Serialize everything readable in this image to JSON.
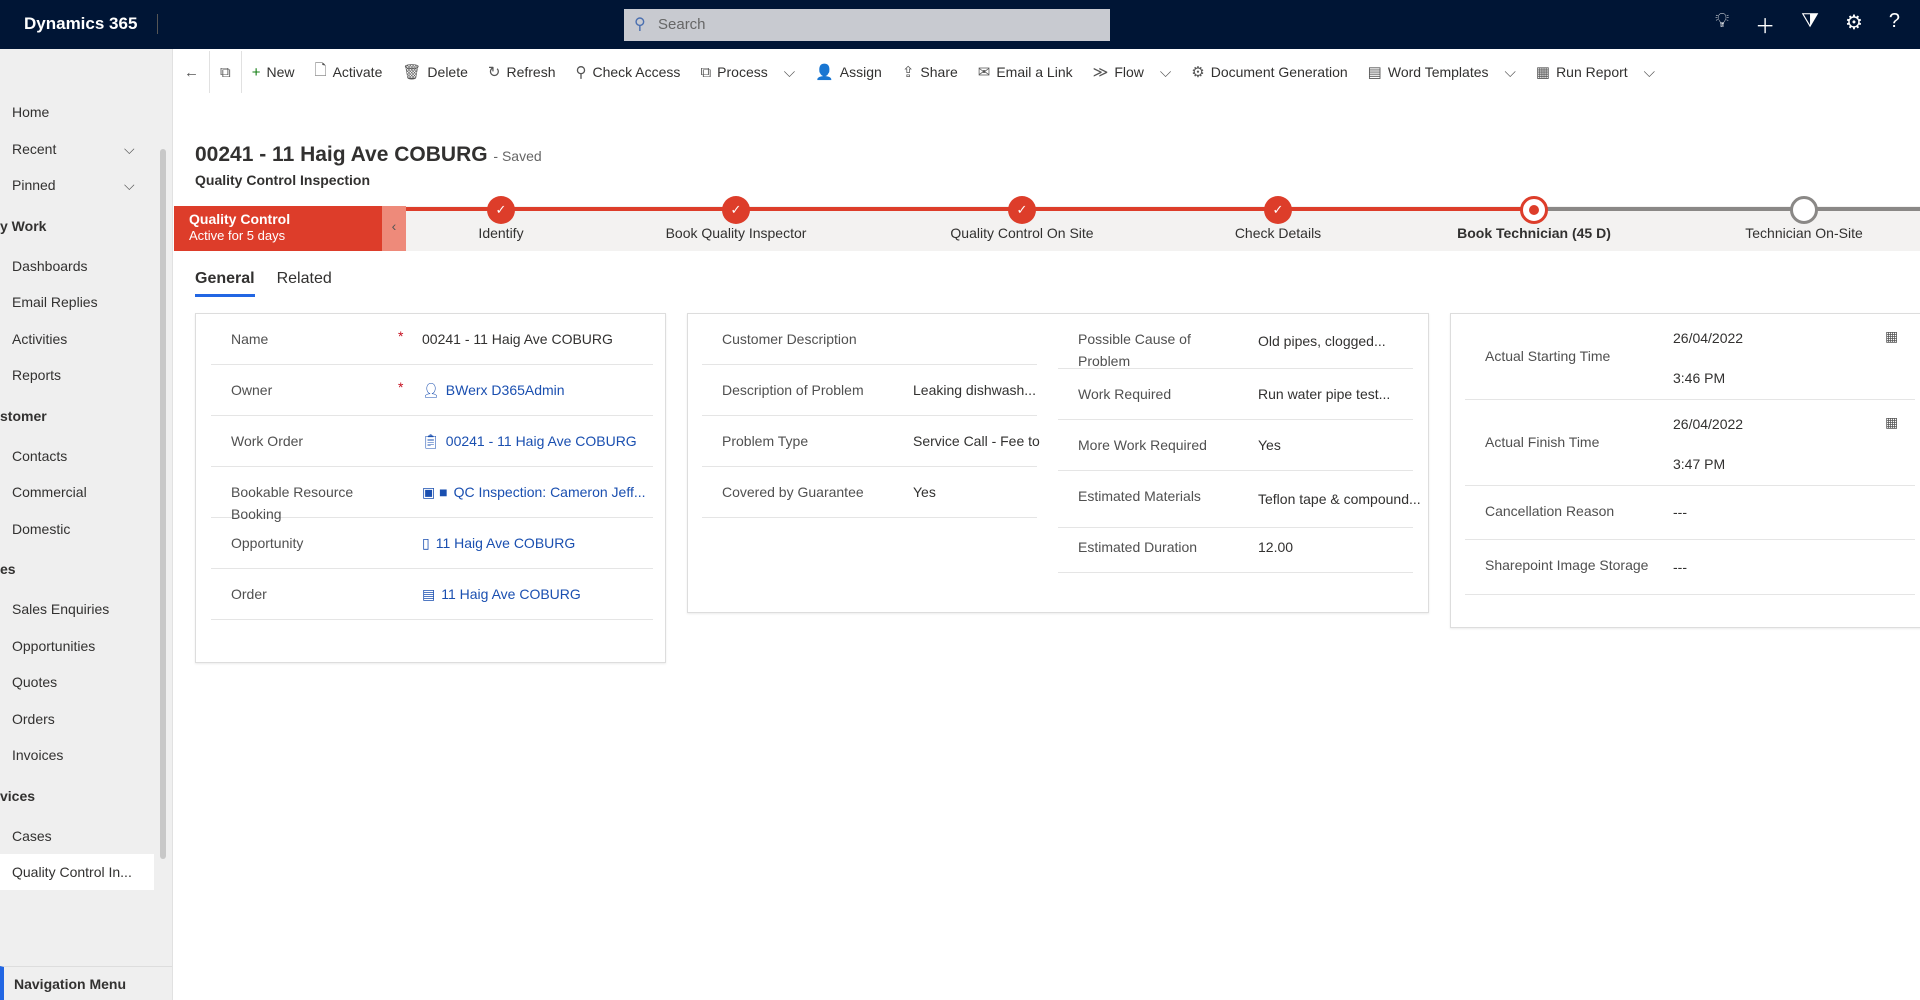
{
  "app": {
    "title": "Dynamics 365",
    "search_placeholder": "Search"
  },
  "top_icons": [
    "lightbulb-icon",
    "plus-icon",
    "filter-icon",
    "gear-icon",
    "help-icon"
  ],
  "sidebar": {
    "items": [
      {
        "label": "Home",
        "type": "item"
      },
      {
        "label": "Recent",
        "type": "item",
        "chevron": true
      },
      {
        "label": "Pinned",
        "type": "item",
        "chevron": true
      },
      {
        "label": "y Work",
        "type": "group"
      },
      {
        "label": "Dashboards",
        "type": "item"
      },
      {
        "label": "Email Replies",
        "type": "item"
      },
      {
        "label": "Activities",
        "type": "item"
      },
      {
        "label": "Reports",
        "type": "item"
      },
      {
        "label": "stomer",
        "type": "group"
      },
      {
        "label": "Contacts",
        "type": "item"
      },
      {
        "label": "Commercial",
        "type": "item"
      },
      {
        "label": "Domestic",
        "type": "item"
      },
      {
        "label": "es",
        "type": "group"
      },
      {
        "label": "Sales Enquiries",
        "type": "item"
      },
      {
        "label": "Opportunities",
        "type": "item"
      },
      {
        "label": "Quotes",
        "type": "item"
      },
      {
        "label": "Orders",
        "type": "item"
      },
      {
        "label": "Invoices",
        "type": "item"
      },
      {
        "label": "vices",
        "type": "group"
      },
      {
        "label": "Cases",
        "type": "item"
      },
      {
        "label": "Quality Control In...",
        "type": "item",
        "selected": true
      }
    ],
    "nav_menu": "Navigation Menu"
  },
  "commands": [
    {
      "label": "New",
      "icon": "+"
    },
    {
      "label": "Activate",
      "icon": "🗋"
    },
    {
      "label": "Delete",
      "icon": "🗑"
    },
    {
      "label": "Refresh",
      "icon": "↻"
    },
    {
      "label": "Check Access",
      "icon": "⚲"
    },
    {
      "label": "Process",
      "icon": "⧉",
      "dropdown": true
    },
    {
      "label": "Assign",
      "icon": "👤"
    },
    {
      "label": "Share",
      "icon": "⇪"
    },
    {
      "label": "Email a Link",
      "icon": "✉"
    },
    {
      "label": "Flow",
      "icon": "≫",
      "dropdown": true
    },
    {
      "label": "Document Generation",
      "icon": "⚙"
    },
    {
      "label": "Word Templates",
      "icon": "▤",
      "dropdown": true
    },
    {
      "label": "Run Report",
      "icon": "▦",
      "dropdown": true
    }
  ],
  "record": {
    "title": "00241 - 11 Haig Ave COBURG",
    "status": "- Saved",
    "entity": "Quality Control Inspection"
  },
  "bpf": {
    "active_stage": "Quality Control",
    "active_for": "Active for   5 days",
    "accent": "#dd3d2a",
    "stages": [
      {
        "label": "Identify",
        "state": "done"
      },
      {
        "label": "Book Quality Inspector",
        "state": "done"
      },
      {
        "label": "Quality Control On Site",
        "state": "done"
      },
      {
        "label": "Check Details",
        "state": "done"
      },
      {
        "label": "Book Technician  (45 D)",
        "state": "current"
      },
      {
        "label": "Technician On-Site",
        "state": "pending"
      }
    ]
  },
  "tabs": [
    {
      "label": "General",
      "active": true
    },
    {
      "label": "Related"
    }
  ],
  "section1": [
    {
      "label": "Name",
      "value": "00241 - 11 Haig Ave COBURG",
      "required": true
    },
    {
      "label": "Owner",
      "value": "BWerx D365Admin",
      "required": true,
      "link": true,
      "icon": "user-icon"
    },
    {
      "label": "Work Order",
      "value": "00241 - 11 Haig Ave COBURG",
      "link": true,
      "icon": "clipboard-icon"
    },
    {
      "label": "Bookable Resource Booking",
      "value": "QC Inspection: Cameron Jeff...",
      "link": true,
      "icon": "booking-icon"
    },
    {
      "label": "Opportunity",
      "value": "11 Haig Ave COBURG",
      "link": true,
      "icon": "opportunity-icon"
    },
    {
      "label": "Order",
      "value": "11 Haig Ave COBURG",
      "link": true,
      "icon": "document-icon"
    }
  ],
  "section2_left": [
    {
      "label": "Customer Description",
      "value": ""
    },
    {
      "label": "Description of Problem",
      "value": "Leaking dishwash..."
    },
    {
      "label": "Problem Type",
      "value": "Service Call - Fee to"
    },
    {
      "label": "Covered by Guarantee",
      "value": "Yes"
    }
  ],
  "section2_right": [
    {
      "label": "Possible Cause of Problem",
      "value": "Old pipes, clogged..."
    },
    {
      "label": "Work Required",
      "value": "Run water pipe test..."
    },
    {
      "label": "More Work Required",
      "value": "Yes"
    },
    {
      "label": "Estimated Materials",
      "value": "Teflon tape & compound..."
    },
    {
      "label": "Estimated Duration",
      "value": "12.00"
    }
  ],
  "section3": [
    {
      "label": "Actual Starting Time",
      "date": "26/04/2022",
      "time": "3:46 PM"
    },
    {
      "label": "Actual Finish Time",
      "date": "26/04/2022",
      "time": "3:47 PM"
    },
    {
      "label": "Cancellation Reason",
      "value": "---"
    },
    {
      "label": "Sharepoint Image Storage",
      "value": "---"
    }
  ]
}
